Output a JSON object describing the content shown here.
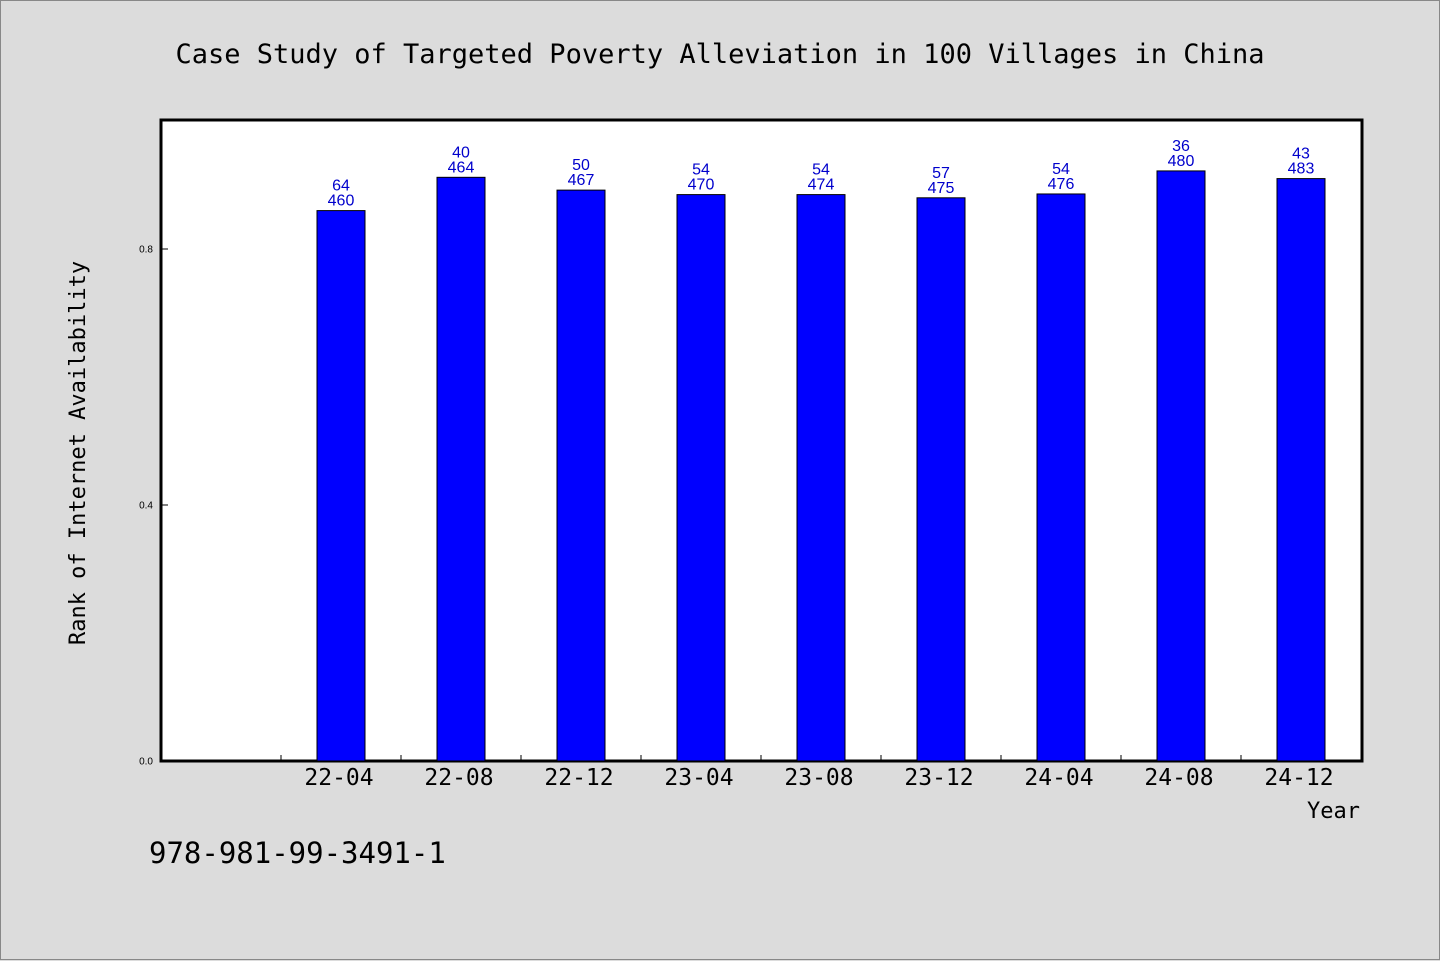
{
  "chart_data": {
    "type": "bar",
    "title": "Case Study of Targeted Poverty Alleviation in 100 Villages in China",
    "xlabel": "Year",
    "ylabel": "Rank of Internet Availability",
    "categories": [
      "22-04",
      "22-08",
      "22-12",
      "23-04",
      "23-08",
      "23-12",
      "24-04",
      "24-08",
      "24-12"
    ],
    "values": [
      0.86,
      0.912,
      0.892,
      0.885,
      0.885,
      0.88,
      0.886,
      0.922,
      0.91
    ],
    "bar_labels_top": [
      "64",
      "40",
      "50",
      "54",
      "54",
      "57",
      "54",
      "36",
      "43"
    ],
    "bar_labels_bottom": [
      "460",
      "464",
      "467",
      "470",
      "474",
      "475",
      "476",
      "480",
      "483"
    ],
    "yticks": [
      "0.0",
      "0.4",
      "0.8"
    ],
    "ytick_values": [
      0.0,
      0.4,
      0.8
    ],
    "ylim": [
      0,
      1.0
    ],
    "grid": false,
    "legend": "none",
    "colors": {
      "bar": "#0000ff",
      "bar_label": "#0000cc",
      "background": "#dcdcdc",
      "plot_background": "#ffffff"
    }
  },
  "footer": {
    "isbn": "978-981-99-3491-1"
  }
}
